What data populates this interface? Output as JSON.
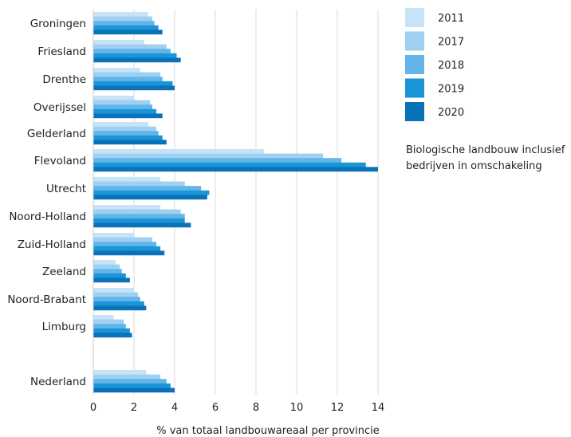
{
  "chart_data": {
    "type": "bar",
    "orientation": "horizontal",
    "categories": [
      "Groningen",
      "Friesland",
      "Drenthe",
      "Overijssel",
      "Gelderland",
      "Flevoland",
      "Utrecht",
      "Noord-Holland",
      "Zuid-Holland",
      "Zeeland",
      "Noord-Brabant",
      "Limburg",
      "Nederland"
    ],
    "series": [
      {
        "name": "2011",
        "color": "#c6e3f7",
        "values": [
          2.7,
          2.5,
          2.3,
          2.0,
          2.7,
          8.4,
          3.3,
          3.3,
          2.0,
          1.1,
          2.0,
          1.0,
          2.6
        ]
      },
      {
        "name": "2017",
        "color": "#9fd0f2",
        "values": [
          2.9,
          3.6,
          3.3,
          2.8,
          3.1,
          11.3,
          4.5,
          4.3,
          2.9,
          1.3,
          2.2,
          1.5,
          3.3
        ]
      },
      {
        "name": "2018",
        "color": "#62b5e8",
        "values": [
          3.0,
          3.8,
          3.4,
          2.9,
          3.2,
          12.2,
          5.3,
          4.5,
          3.1,
          1.4,
          2.3,
          1.6,
          3.6
        ]
      },
      {
        "name": "2019",
        "color": "#1a96d8",
        "values": [
          3.2,
          4.1,
          3.9,
          3.1,
          3.4,
          13.4,
          5.7,
          4.5,
          3.3,
          1.6,
          2.5,
          1.8,
          3.8
        ]
      },
      {
        "name": "2020",
        "color": "#0a72b8",
        "values": [
          3.4,
          4.3,
          4.0,
          3.4,
          3.6,
          14.0,
          5.6,
          4.8,
          3.5,
          1.8,
          2.6,
          1.9,
          4.0
        ]
      }
    ],
    "xlabel": "% van totaal landbouwareaal per provincie",
    "xlim": [
      0,
      14
    ],
    "xticks": [
      "0",
      "2",
      "4",
      "6",
      "8",
      "10",
      "12",
      "14"
    ],
    "grid": "vertical",
    "legend": "top-right",
    "note": [
      "Biologische landbouw inclusief",
      "bedrijven in omschakeling"
    ]
  }
}
